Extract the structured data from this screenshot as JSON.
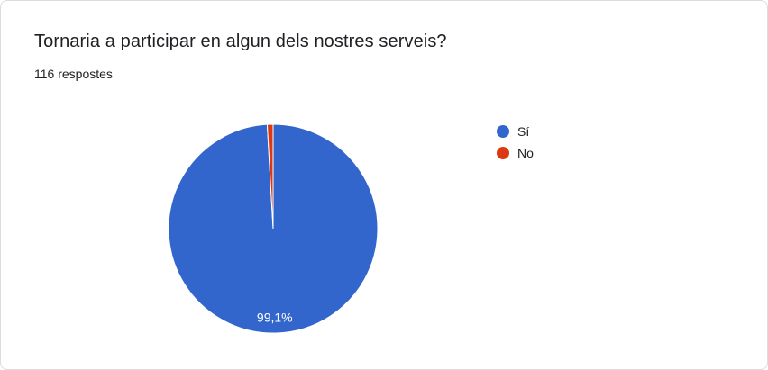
{
  "title": "Tornaria a participar en algun dels nostres serveis?",
  "response_count": "116 respostes",
  "chart_data": {
    "type": "pie",
    "categories": [
      "Sí",
      "No"
    ],
    "values": [
      99.1,
      0.9
    ],
    "data_labels": [
      "99,1%",
      ""
    ],
    "colors": [
      "#3366cc",
      "#dc3912"
    ],
    "legend_position": "right"
  }
}
